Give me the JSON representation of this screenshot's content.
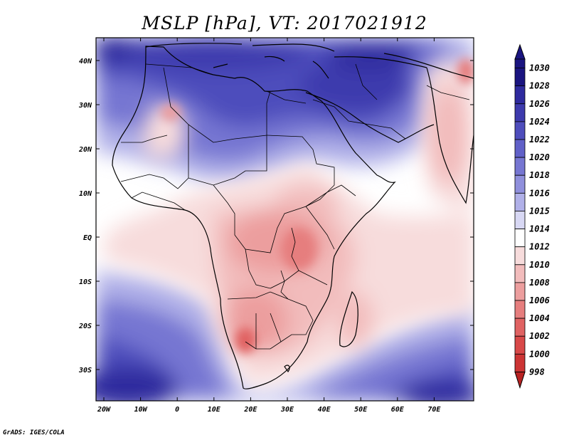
{
  "title": "MSLP [hPa], VT: 2017021912",
  "credit": "GrADS: IGES/COLA",
  "map": {
    "lat_labels": [
      "40N",
      "30N",
      "20N",
      "10N",
      "EQ",
      "10S",
      "20S",
      "30S"
    ],
    "lon_labels": [
      "20W",
      "10W",
      "0",
      "10E",
      "20E",
      "30E",
      "40E",
      "50E",
      "60E",
      "70E"
    ]
  },
  "legend": {
    "levels": [
      {
        "label": "1030",
        "color": "#1a1480"
      },
      {
        "label": "1028",
        "color": "#2e2a9e"
      },
      {
        "label": "1026",
        "color": "#3d3aad"
      },
      {
        "label": "1024",
        "color": "#4e4dbc"
      },
      {
        "label": "1022",
        "color": "#6060c8"
      },
      {
        "label": "1020",
        "color": "#7676d2"
      },
      {
        "label": "1018",
        "color": "#8f8fdc"
      },
      {
        "label": "1016",
        "color": "#b0b0e8"
      },
      {
        "label": "1015",
        "color": "#d8d8f4"
      },
      {
        "label": "1014",
        "color": "#ffffff"
      },
      {
        "label": "1012",
        "color": "#f7dcdc"
      },
      {
        "label": "1010",
        "color": "#f2bcbc"
      },
      {
        "label": "1008",
        "color": "#ec9e9e"
      },
      {
        "label": "1006",
        "color": "#e67e7e"
      },
      {
        "label": "1004",
        "color": "#e06262"
      },
      {
        "label": "1002",
        "color": "#d84848"
      },
      {
        "label": "1000",
        "color": "#cc3434"
      },
      {
        "label": "998",
        "color": "#b82222"
      }
    ]
  }
}
